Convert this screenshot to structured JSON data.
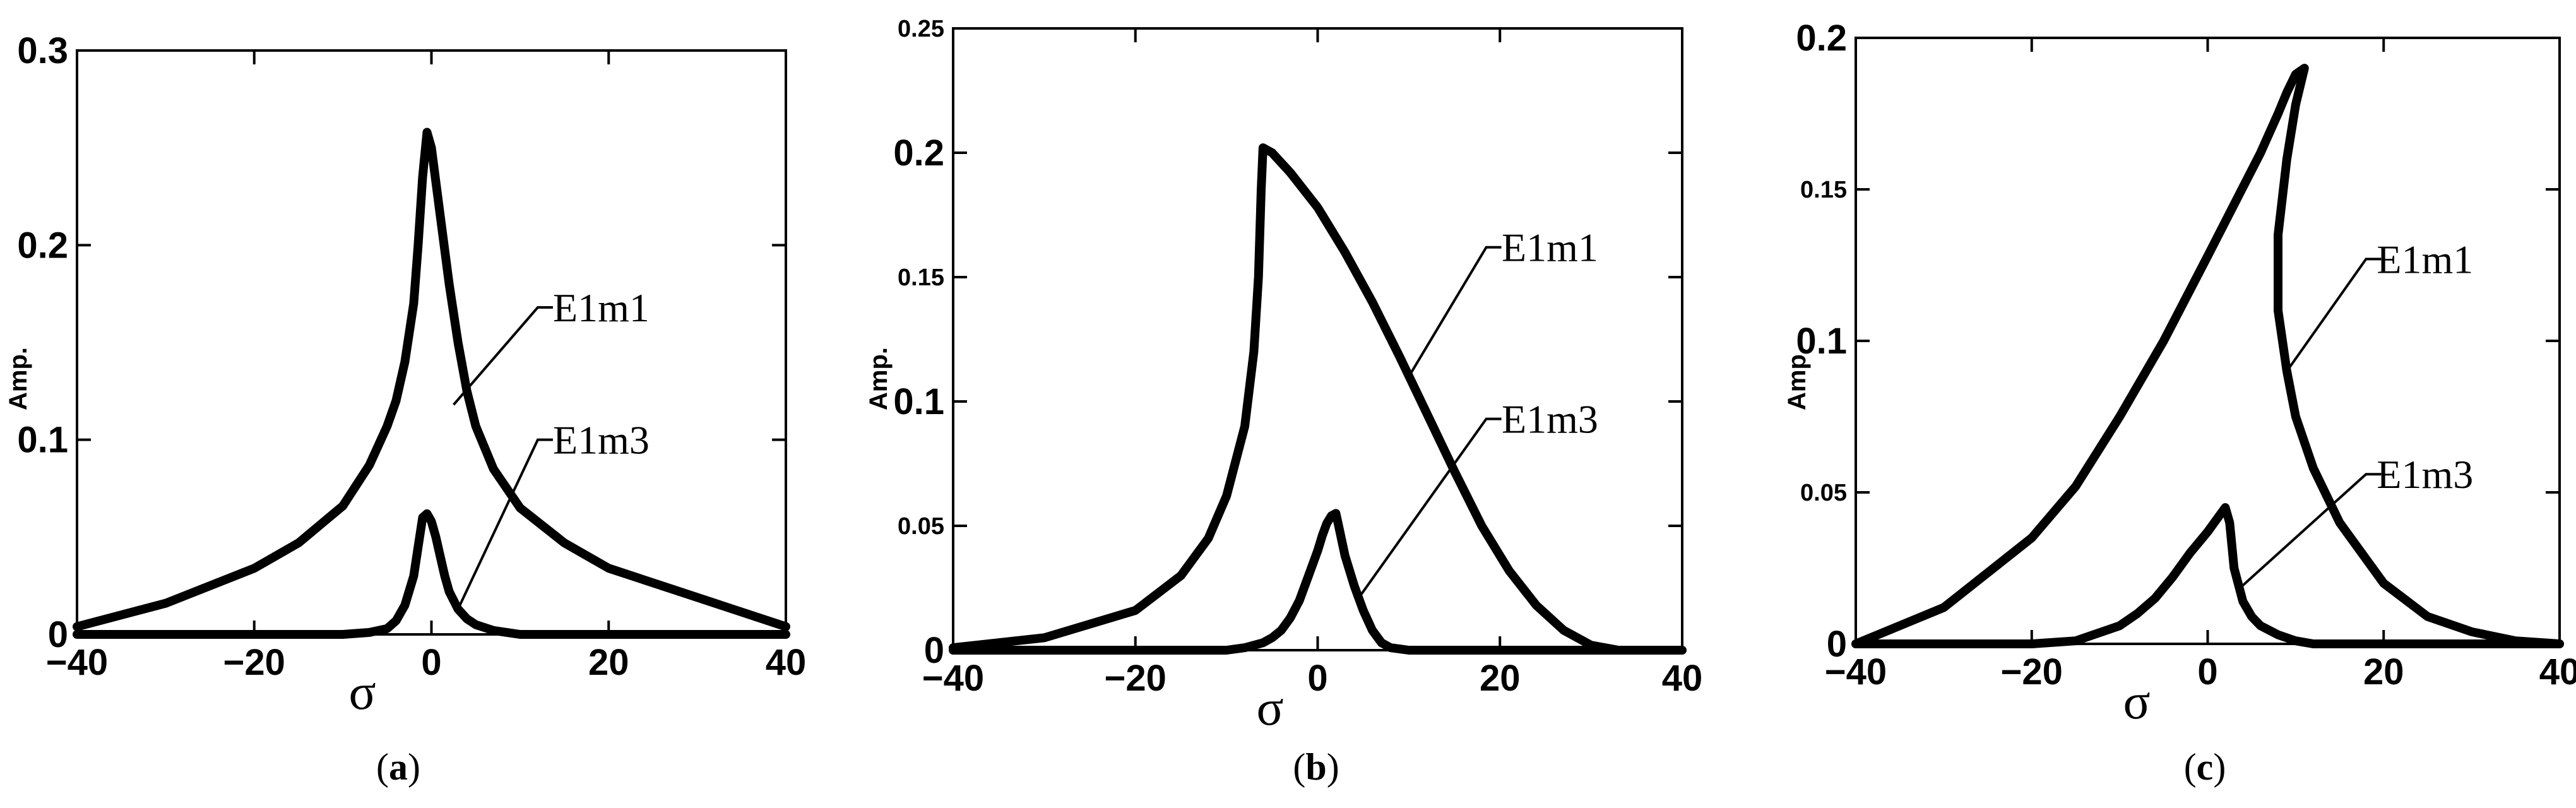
{
  "chart_data": [
    {
      "type": "line",
      "panel": "a",
      "caption_open": "(",
      "caption_letter": "a",
      "caption_close": ")",
      "xlabel": "σ",
      "ylabel": "Amp.",
      "xlim": [
        -40,
        40
      ],
      "ylim": [
        0,
        0.3
      ],
      "x_ticks": [
        -40,
        -20,
        0,
        20,
        40
      ],
      "x_tick_labels": [
        "−40",
        "−20",
        "0",
        "20",
        "40"
      ],
      "y_ticks": [
        0,
        0.1,
        0.2,
        0.3
      ],
      "y_tick_labels": [
        "0",
        "0.1",
        "0.2",
        "0.3"
      ],
      "y_tick_style": "big",
      "series": [
        {
          "name": "E1m1",
          "x": [
            -40,
            -30,
            -20,
            -15,
            -10,
            -7,
            -5,
            -4,
            -3,
            -2,
            -1.5,
            -1,
            -0.5,
            0,
            1,
            2,
            3,
            4,
            5,
            7,
            10,
            15,
            20,
            30,
            40
          ],
          "y": [
            0.004,
            0.016,
            0.034,
            0.047,
            0.066,
            0.087,
            0.107,
            0.12,
            0.14,
            0.17,
            0.2,
            0.235,
            0.258,
            0.25,
            0.215,
            0.18,
            0.15,
            0.125,
            0.107,
            0.085,
            0.065,
            0.047,
            0.034,
            0.019,
            0.004
          ]
        },
        {
          "name": "E1m3",
          "x": [
            -40,
            -10,
            -7,
            -5,
            -4,
            -3,
            -2,
            -1.5,
            -1,
            -0.5,
            0,
            0.5,
            1,
            1.5,
            2,
            3,
            4,
            5,
            7,
            10,
            15,
            40
          ],
          "y": [
            0,
            0,
            0.001,
            0.003,
            0.007,
            0.015,
            0.03,
            0.045,
            0.06,
            0.062,
            0.058,
            0.05,
            0.04,
            0.03,
            0.022,
            0.013,
            0.008,
            0.005,
            0.002,
            0,
            0,
            0
          ]
        }
      ],
      "annotations": [
        {
          "text": "E1m1",
          "series": "E1m1",
          "point": [
            2.5,
            0.118
          ],
          "elbow": [
            12,
            0.168
          ],
          "text_at": [
            13,
            0.168
          ]
        },
        {
          "text": "E1m3",
          "series": "E1m3",
          "point": [
            3,
            0.013
          ],
          "elbow": [
            12,
            0.1
          ],
          "text_at": [
            13,
            0.1
          ]
        }
      ]
    },
    {
      "type": "line",
      "panel": "b",
      "caption_open": "(",
      "caption_letter": "b",
      "caption_close": ")",
      "xlabel": "σ",
      "ylabel": "Amp.",
      "xlim": [
        -40,
        40
      ],
      "ylim": [
        0,
        0.25
      ],
      "x_ticks": [
        -40,
        -20,
        0,
        20,
        40
      ],
      "x_tick_labels": [
        "−40",
        "−20",
        "0",
        "20",
        "40"
      ],
      "y_ticks": [
        0,
        0.05,
        0.1,
        0.15,
        0.2,
        0.25
      ],
      "y_tick_labels": [
        "0",
        "0.05",
        "0.1",
        "0.15",
        "0.2",
        "0.25"
      ],
      "y_tick_style": "mixed",
      "series": [
        {
          "name": "E1m1",
          "x": [
            -40,
            -30,
            -20,
            -15,
            -12,
            -10,
            -8,
            -7,
            -6.5,
            -6.2,
            -6,
            -5,
            -3,
            0,
            3,
            6,
            9,
            12,
            15,
            18,
            21,
            24,
            27,
            30,
            33
          ],
          "y": [
            0.001,
            0.005,
            0.016,
            0.03,
            0.045,
            0.062,
            0.09,
            0.12,
            0.15,
            0.185,
            0.202,
            0.2,
            0.192,
            0.178,
            0.16,
            0.14,
            0.118,
            0.095,
            0.072,
            0.05,
            0.032,
            0.018,
            0.008,
            0.002,
            0
          ]
        },
        {
          "name": "E1m3",
          "x": [
            -40,
            -10,
            -8,
            -6,
            -5,
            -4,
            -3,
            -2,
            -1,
            0,
            0.5,
            1,
            1.5,
            2,
            2.3,
            3,
            4,
            5,
            6,
            7,
            8,
            10,
            40
          ],
          "y": [
            0,
            0,
            0.001,
            0.003,
            0.005,
            0.008,
            0.013,
            0.02,
            0.03,
            0.04,
            0.046,
            0.051,
            0.054,
            0.055,
            0.05,
            0.038,
            0.026,
            0.016,
            0.008,
            0.003,
            0.001,
            0,
            0
          ]
        }
      ],
      "annotations": [
        {
          "text": "E1m1",
          "series": "E1m1",
          "point": [
            10,
            0.11
          ],
          "elbow": [
            18.5,
            0.162
          ],
          "text_at": [
            19.5,
            0.162
          ]
        },
        {
          "text": "E1m3",
          "series": "E1m3",
          "point": [
            4.5,
            0.021
          ],
          "elbow": [
            18.5,
            0.093
          ],
          "text_at": [
            19.5,
            0.093
          ]
        }
      ]
    },
    {
      "type": "line",
      "panel": "c",
      "caption_open": "(",
      "caption_letter": "c",
      "caption_close": ")",
      "xlabel": "σ",
      "ylabel": "Amp.",
      "xlim": [
        -40,
        40
      ],
      "ylim": [
        0,
        0.2
      ],
      "x_ticks": [
        -40,
        -20,
        0,
        20,
        40
      ],
      "x_tick_labels": [
        "−40",
        "−20",
        "0",
        "20",
        "40"
      ],
      "y_ticks": [
        0,
        0.05,
        0.1,
        0.15,
        0.2
      ],
      "y_tick_labels": [
        "0",
        "0.05",
        "0.1",
        "0.15",
        "0.2"
      ],
      "y_tick_style": "mixed",
      "series": [
        {
          "name": "E1m1",
          "x": [
            -40,
            -30,
            -20,
            -15,
            -10,
            -5,
            0,
            3,
            6,
            8,
            9,
            10,
            11,
            10,
            9,
            8,
            8,
            9,
            10,
            12,
            15,
            20,
            25,
            30,
            35,
            40
          ],
          "y": [
            0,
            0.012,
            0.035,
            0.052,
            0.075,
            0.1,
            0.128,
            0.145,
            0.162,
            0.175,
            0.182,
            0.188,
            0.19,
            0.178,
            0.16,
            0.135,
            0.11,
            0.09,
            0.075,
            0.058,
            0.04,
            0.02,
            0.009,
            0.004,
            0.001,
            0
          ]
        },
        {
          "name": "E1m3",
          "x": [
            -40,
            -20,
            -15,
            -10,
            -8,
            -6,
            -4,
            -2,
            0,
            1,
            2,
            2.5,
            3,
            4,
            5,
            6,
            8,
            10,
            12,
            15,
            40
          ],
          "y": [
            0,
            0,
            0.001,
            0.006,
            0.01,
            0.015,
            0.022,
            0.03,
            0.037,
            0.041,
            0.045,
            0.04,
            0.025,
            0.014,
            0.009,
            0.006,
            0.003,
            0.001,
            0,
            0,
            0
          ]
        }
      ],
      "annotations": [
        {
          "text": "E1m1",
          "series": "E1m1",
          "point": [
            9,
            0.09
          ],
          "elbow": [
            18,
            0.127
          ],
          "text_at": [
            18.5,
            0.127
          ]
        },
        {
          "text": "E1m3",
          "series": "E1m3",
          "point": [
            3.5,
            0.018
          ],
          "elbow": [
            18,
            0.056
          ],
          "text_at": [
            18.5,
            0.056
          ]
        }
      ]
    }
  ]
}
